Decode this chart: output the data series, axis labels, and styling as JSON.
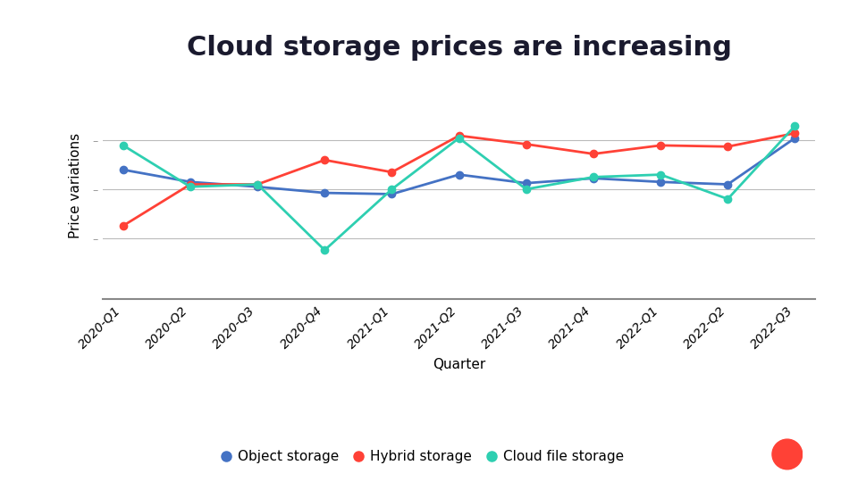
{
  "title": "Cloud storage prices are increasing",
  "xlabel": "Quarter",
  "ylabel": "Price variations",
  "quarters": [
    "2020-Q1",
    "2020-Q2",
    "2020-Q3",
    "2020-Q4",
    "2021-Q1",
    "2021-Q2",
    "2021-Q3",
    "2021-Q4",
    "2022-Q1",
    "2022-Q2",
    "2022-Q3"
  ],
  "object_storage": [
    3.8,
    3.3,
    3.1,
    2.85,
    2.8,
    3.6,
    3.25,
    3.45,
    3.3,
    3.2,
    5.1
  ],
  "hybrid_storage": [
    1.5,
    3.2,
    3.2,
    4.2,
    3.7,
    5.2,
    4.85,
    4.45,
    4.8,
    4.75,
    5.3
  ],
  "cloud_file_storage": [
    4.8,
    3.1,
    3.2,
    0.5,
    3.0,
    5.1,
    3.0,
    3.5,
    3.6,
    2.6,
    5.6
  ],
  "object_color": "#4472C4",
  "hybrid_color": "#FF4136",
  "cloud_file_color": "#2ECFB1",
  "bg_color": "#FFFFFF",
  "title_fontsize": 22,
  "axis_label_fontsize": 11,
  "legend_fontsize": 11,
  "tick_fontsize": 10,
  "ylim": [
    -1.5,
    7.8
  ],
  "ytick_positions": [
    1.0,
    3.0,
    5.0
  ],
  "title_fontweight": "bold",
  "grid_color": "#BBBBBB",
  "marker_size": 6,
  "line_width": 2.0,
  "title_color": "#1a1a2e",
  "logo_color": "#FF4136"
}
